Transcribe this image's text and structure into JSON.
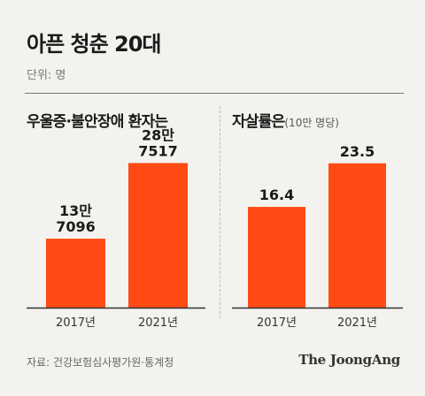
{
  "title": "아픈 청춘 20대",
  "unit": "단위: 명",
  "source": "자료: 건강보험심사평가원·통계청",
  "logo": "The JoongAng",
  "colors": {
    "bar": "#ff4a14",
    "axis": "#333333",
    "text": "#1a1a1a"
  },
  "chart_data": [
    {
      "type": "bar",
      "title": "우울증·불안장애 환자는",
      "subtitle": "",
      "categories": [
        "2017년",
        "2021년"
      ],
      "values": [
        137096,
        287517
      ],
      "value_labels": [
        [
          "13만",
          "7096"
        ],
        [
          "28만",
          "7517"
        ]
      ],
      "ylim": [
        0,
        320000
      ]
    },
    {
      "type": "bar",
      "title": "자살률은",
      "subtitle": "(10만 명당)",
      "categories": [
        "2017년",
        "2021년"
      ],
      "values": [
        16.4,
        23.5
      ],
      "value_labels": [
        [
          "16.4"
        ],
        [
          "23.5"
        ]
      ],
      "ylim": [
        0,
        26.2
      ]
    }
  ]
}
